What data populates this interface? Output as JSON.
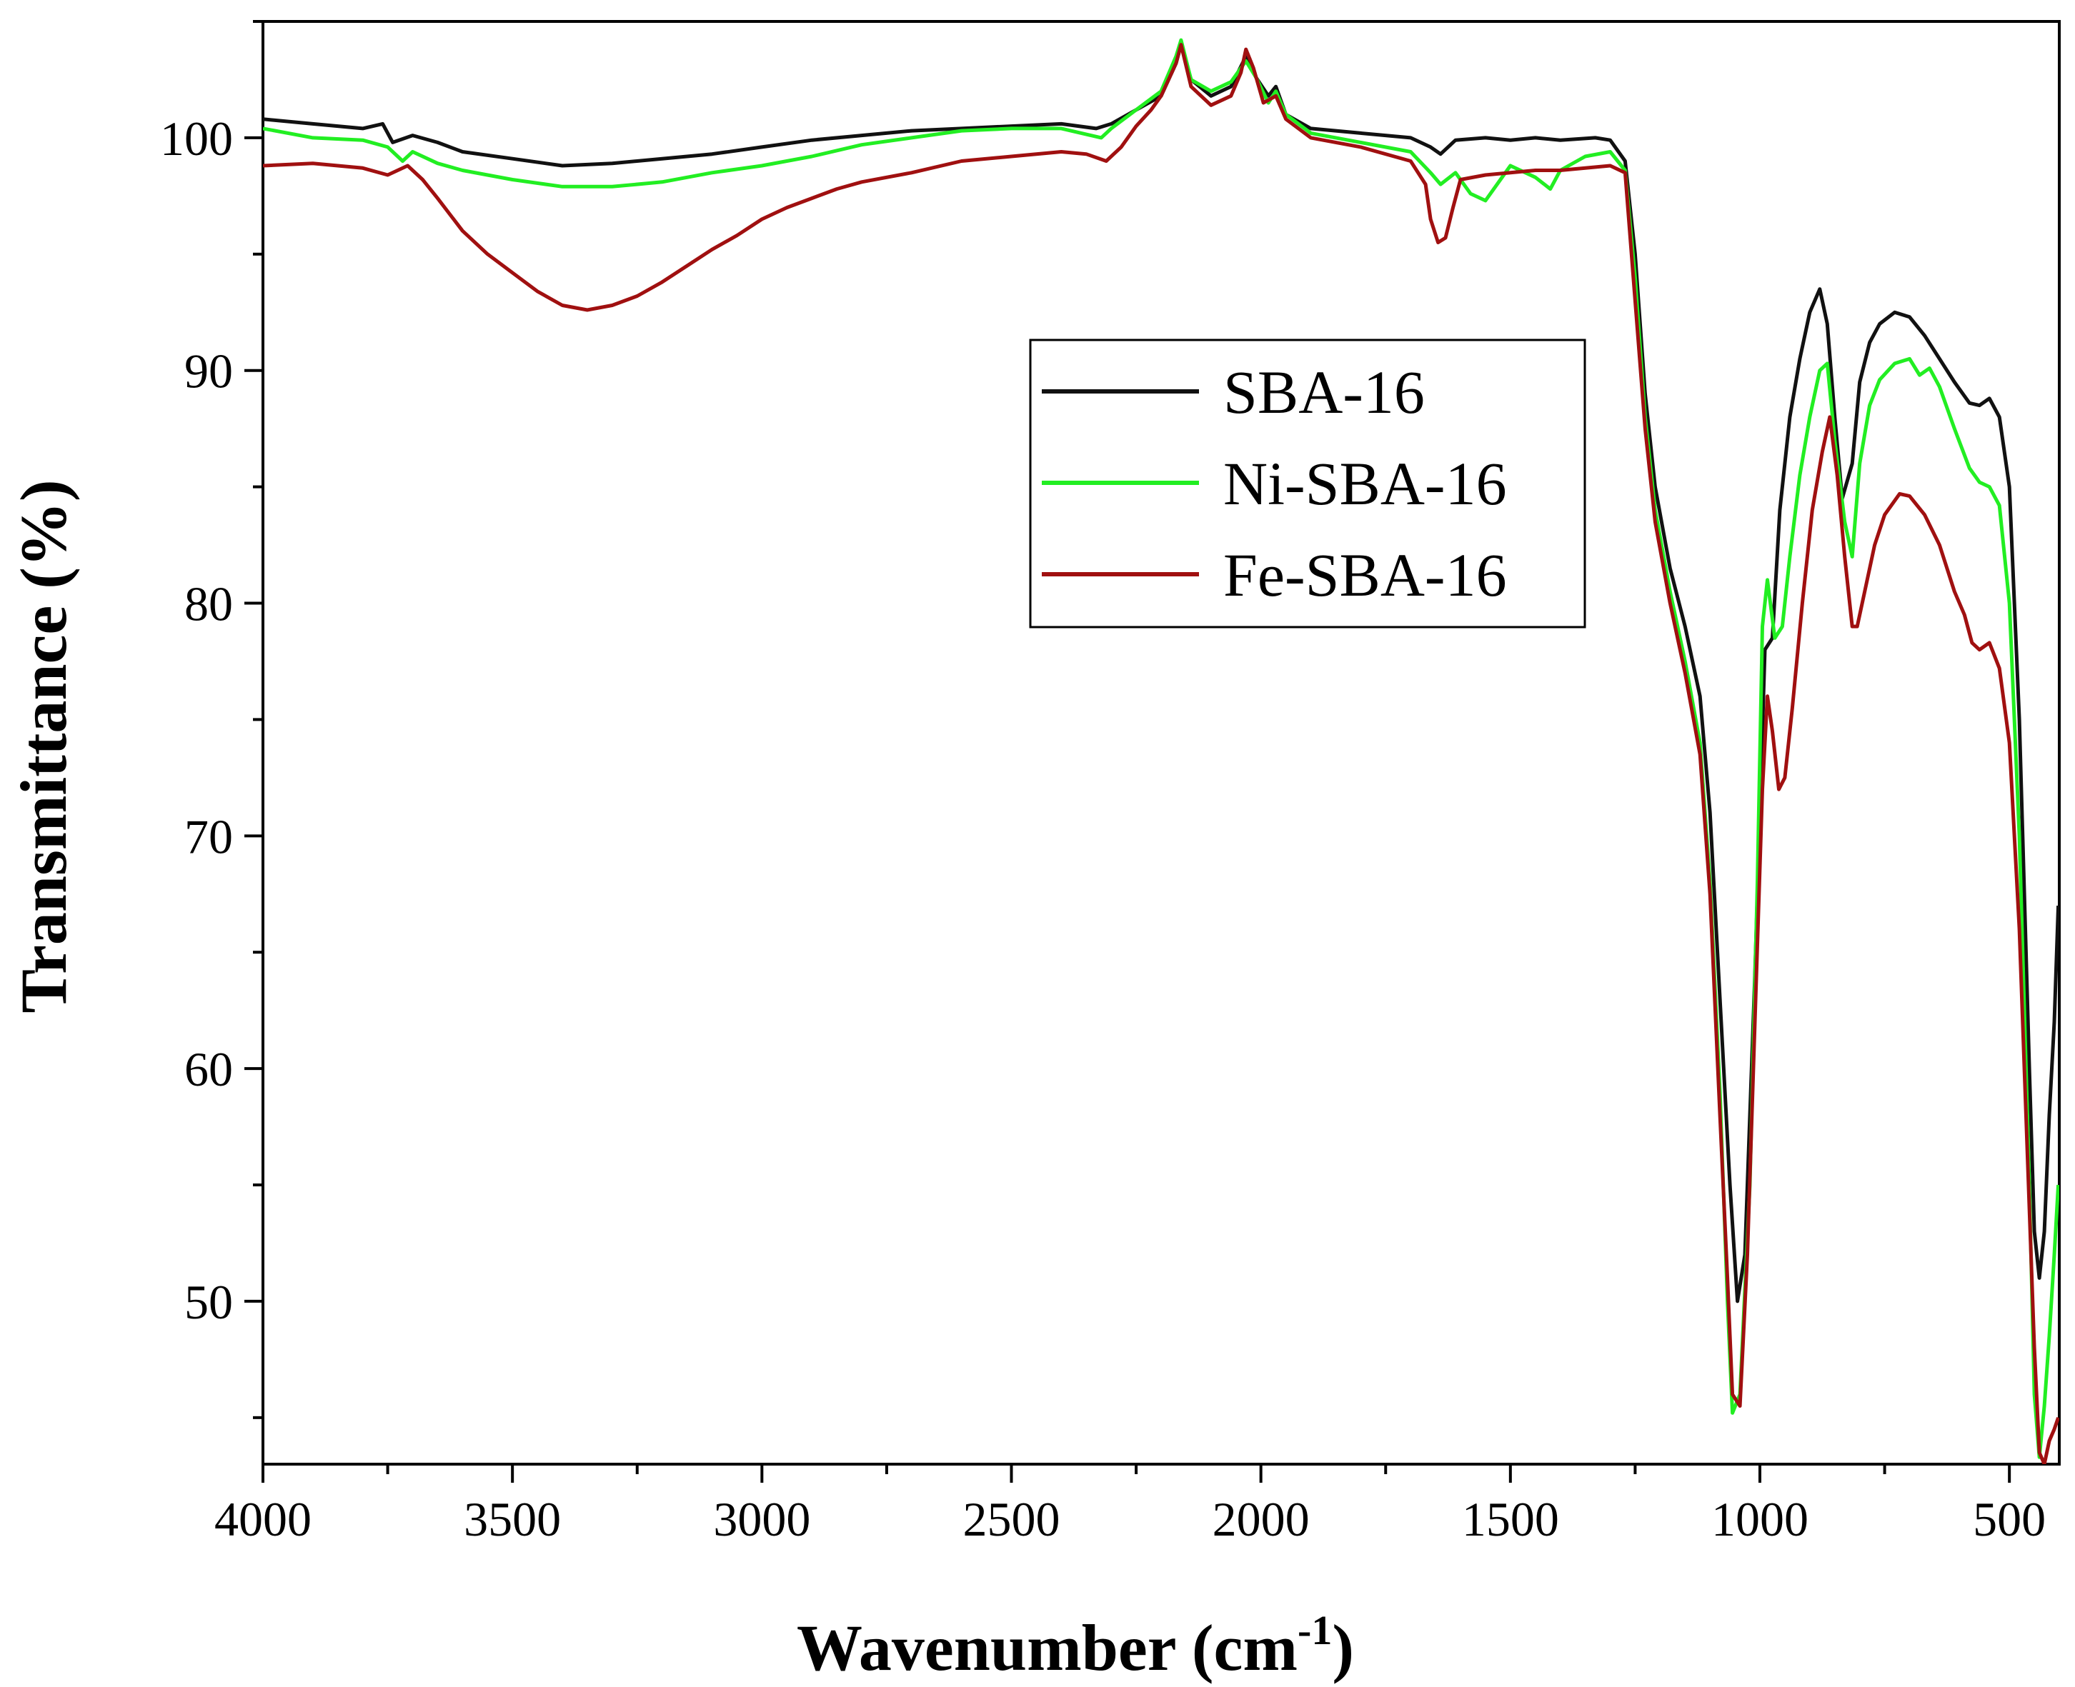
{
  "chart_data": {
    "type": "line",
    "title": "",
    "xlabel": "Wavenumber (cm",
    "xlabel_superscript": "-1",
    "xlabel_suffix": ")",
    "ylabel": "Transmittance (%)",
    "xlim": [
      4000,
      400
    ],
    "ylim": [
      43,
      105
    ],
    "x_reversed": true,
    "grid": false,
    "legend_position": "upper-right-center",
    "x_ticks": [
      4000,
      3500,
      3000,
      2500,
      2000,
      1500,
      1000,
      500
    ],
    "x_tick_labels": [
      "4000",
      "3500",
      "3000",
      "2500",
      "2000",
      "1500",
      "1000",
      "500"
    ],
    "y_ticks": [
      50,
      60,
      70,
      80,
      90,
      100
    ],
    "y_tick_labels": [
      "50",
      "60",
      "70",
      "80",
      "90",
      "100"
    ],
    "series": [
      {
        "name": "SBA-16",
        "color": "#111111",
        "points": [
          [
            4000,
            100.8
          ],
          [
            3900,
            100.6
          ],
          [
            3800,
            100.4
          ],
          [
            3760,
            100.6
          ],
          [
            3740,
            99.8
          ],
          [
            3700,
            100.1
          ],
          [
            3650,
            99.8
          ],
          [
            3600,
            99.4
          ],
          [
            3500,
            99.1
          ],
          [
            3400,
            98.8
          ],
          [
            3300,
            98.9
          ],
          [
            3200,
            99.1
          ],
          [
            3100,
            99.3
          ],
          [
            3000,
            99.6
          ],
          [
            2900,
            99.9
          ],
          [
            2800,
            100.1
          ],
          [
            2700,
            100.3
          ],
          [
            2600,
            100.4
          ],
          [
            2500,
            100.5
          ],
          [
            2400,
            100.6
          ],
          [
            2330,
            100.4
          ],
          [
            2300,
            100.6
          ],
          [
            2250,
            101.2
          ],
          [
            2200,
            101.8
          ],
          [
            2170,
            103.2
          ],
          [
            2160,
            104.0
          ],
          [
            2140,
            102.5
          ],
          [
            2100,
            101.8
          ],
          [
            2060,
            102.2
          ],
          [
            2030,
            103.5
          ],
          [
            2010,
            102.6
          ],
          [
            1985,
            101.8
          ],
          [
            1970,
            102.2
          ],
          [
            1950,
            101.0
          ],
          [
            1900,
            100.4
          ],
          [
            1800,
            100.2
          ],
          [
            1700,
            100.0
          ],
          [
            1660,
            99.6
          ],
          [
            1640,
            99.3
          ],
          [
            1610,
            99.9
          ],
          [
            1550,
            100.0
          ],
          [
            1500,
            99.9
          ],
          [
            1450,
            100.0
          ],
          [
            1400,
            99.9
          ],
          [
            1330,
            100.0
          ],
          [
            1300,
            99.9
          ],
          [
            1270,
            99.0
          ],
          [
            1250,
            95.0
          ],
          [
            1230,
            89.0
          ],
          [
            1210,
            85.0
          ],
          [
            1180,
            81.5
          ],
          [
            1150,
            79.0
          ],
          [
            1120,
            76.0
          ],
          [
            1100,
            71.0
          ],
          [
            1080,
            63.0
          ],
          [
            1060,
            55.0
          ],
          [
            1045,
            50.0
          ],
          [
            1030,
            52.0
          ],
          [
            1010,
            64.0
          ],
          [
            990,
            78.0
          ],
          [
            975,
            78.5
          ],
          [
            960,
            84.0
          ],
          [
            940,
            88.0
          ],
          [
            920,
            90.5
          ],
          [
            900,
            92.5
          ],
          [
            880,
            93.5
          ],
          [
            865,
            92.0
          ],
          [
            850,
            88.0
          ],
          [
            835,
            84.5
          ],
          [
            815,
            86.0
          ],
          [
            800,
            89.5
          ],
          [
            780,
            91.2
          ],
          [
            760,
            92.0
          ],
          [
            730,
            92.5
          ],
          [
            700,
            92.3
          ],
          [
            670,
            91.5
          ],
          [
            640,
            90.5
          ],
          [
            610,
            89.5
          ],
          [
            580,
            88.6
          ],
          [
            560,
            88.5
          ],
          [
            540,
            88.8
          ],
          [
            520,
            88.0
          ],
          [
            500,
            85.0
          ],
          [
            480,
            75.0
          ],
          [
            460,
            60.0
          ],
          [
            450,
            53.0
          ],
          [
            440,
            51.0
          ],
          [
            430,
            53.0
          ],
          [
            420,
            58.0
          ],
          [
            410,
            62.0
          ],
          [
            402,
            67.0
          ]
        ]
      },
      {
        "name": "Ni-SBA-16",
        "color": "#22ee22",
        "points": [
          [
            4000,
            100.4
          ],
          [
            3900,
            100.0
          ],
          [
            3800,
            99.9
          ],
          [
            3750,
            99.6
          ],
          [
            3720,
            99.0
          ],
          [
            3700,
            99.4
          ],
          [
            3650,
            98.9
          ],
          [
            3600,
            98.6
          ],
          [
            3500,
            98.2
          ],
          [
            3400,
            97.9
          ],
          [
            3300,
            97.9
          ],
          [
            3200,
            98.1
          ],
          [
            3100,
            98.5
          ],
          [
            3000,
            98.8
          ],
          [
            2900,
            99.2
          ],
          [
            2800,
            99.7
          ],
          [
            2700,
            100.0
          ],
          [
            2600,
            100.3
          ],
          [
            2500,
            100.4
          ],
          [
            2400,
            100.4
          ],
          [
            2320,
            100.0
          ],
          [
            2300,
            100.4
          ],
          [
            2250,
            101.2
          ],
          [
            2200,
            102.0
          ],
          [
            2170,
            103.5
          ],
          [
            2160,
            104.2
          ],
          [
            2140,
            102.5
          ],
          [
            2100,
            102.0
          ],
          [
            2060,
            102.4
          ],
          [
            2030,
            103.3
          ],
          [
            2010,
            102.6
          ],
          [
            1985,
            101.5
          ],
          [
            1970,
            102.0
          ],
          [
            1950,
            101.0
          ],
          [
            1900,
            100.2
          ],
          [
            1800,
            99.8
          ],
          [
            1700,
            99.4
          ],
          [
            1660,
            98.5
          ],
          [
            1640,
            98.0
          ],
          [
            1610,
            98.5
          ],
          [
            1580,
            97.6
          ],
          [
            1550,
            97.3
          ],
          [
            1520,
            98.2
          ],
          [
            1500,
            98.8
          ],
          [
            1450,
            98.3
          ],
          [
            1420,
            97.8
          ],
          [
            1400,
            98.6
          ],
          [
            1350,
            99.2
          ],
          [
            1300,
            99.4
          ],
          [
            1270,
            98.6
          ],
          [
            1250,
            94.0
          ],
          [
            1230,
            88.0
          ],
          [
            1210,
            84.0
          ],
          [
            1180,
            80.5
          ],
          [
            1150,
            77.5
          ],
          [
            1120,
            74.0
          ],
          [
            1100,
            68.0
          ],
          [
            1080,
            59.0
          ],
          [
            1065,
            50.0
          ],
          [
            1055,
            45.2
          ],
          [
            1040,
            46.0
          ],
          [
            1020,
            55.0
          ],
          [
            1005,
            68.0
          ],
          [
            995,
            79.0
          ],
          [
            985,
            81.0
          ],
          [
            970,
            78.5
          ],
          [
            955,
            79.0
          ],
          [
            940,
            82.0
          ],
          [
            920,
            85.5
          ],
          [
            900,
            88.0
          ],
          [
            880,
            90.0
          ],
          [
            865,
            90.3
          ],
          [
            850,
            87.0
          ],
          [
            830,
            83.5
          ],
          [
            815,
            82.0
          ],
          [
            800,
            86.0
          ],
          [
            780,
            88.5
          ],
          [
            760,
            89.6
          ],
          [
            730,
            90.3
          ],
          [
            700,
            90.5
          ],
          [
            680,
            89.8
          ],
          [
            660,
            90.1
          ],
          [
            640,
            89.3
          ],
          [
            610,
            87.5
          ],
          [
            580,
            85.8
          ],
          [
            560,
            85.2
          ],
          [
            540,
            85.0
          ],
          [
            520,
            84.2
          ],
          [
            500,
            80.0
          ],
          [
            480,
            70.0
          ],
          [
            460,
            55.0
          ],
          [
            450,
            46.0
          ],
          [
            440,
            43.3
          ],
          [
            430,
            45.5
          ],
          [
            420,
            48.5
          ],
          [
            410,
            52.0
          ],
          [
            402,
            55.0
          ]
        ]
      },
      {
        "name": "Fe-SBA-16",
        "color": "#a01010",
        "points": [
          [
            4000,
            98.8
          ],
          [
            3900,
            98.9
          ],
          [
            3800,
            98.7
          ],
          [
            3750,
            98.4
          ],
          [
            3710,
            98.8
          ],
          [
            3680,
            98.2
          ],
          [
            3650,
            97.4
          ],
          [
            3600,
            96.0
          ],
          [
            3550,
            95.0
          ],
          [
            3500,
            94.2
          ],
          [
            3450,
            93.4
          ],
          [
            3400,
            92.8
          ],
          [
            3350,
            92.6
          ],
          [
            3300,
            92.8
          ],
          [
            3250,
            93.2
          ],
          [
            3200,
            93.8
          ],
          [
            3150,
            94.5
          ],
          [
            3100,
            95.2
          ],
          [
            3050,
            95.8
          ],
          [
            3000,
            96.5
          ],
          [
            2950,
            97.0
          ],
          [
            2900,
            97.4
          ],
          [
            2850,
            97.8
          ],
          [
            2800,
            98.1
          ],
          [
            2700,
            98.5
          ],
          [
            2600,
            99.0
          ],
          [
            2500,
            99.2
          ],
          [
            2400,
            99.4
          ],
          [
            2350,
            99.3
          ],
          [
            2310,
            99.0
          ],
          [
            2280,
            99.6
          ],
          [
            2250,
            100.5
          ],
          [
            2220,
            101.2
          ],
          [
            2200,
            101.8
          ],
          [
            2170,
            103.2
          ],
          [
            2160,
            104.0
          ],
          [
            2140,
            102.2
          ],
          [
            2100,
            101.4
          ],
          [
            2060,
            101.8
          ],
          [
            2040,
            102.8
          ],
          [
            2030,
            103.8
          ],
          [
            2015,
            103.0
          ],
          [
            1995,
            101.5
          ],
          [
            1970,
            101.8
          ],
          [
            1950,
            100.8
          ],
          [
            1900,
            100.0
          ],
          [
            1800,
            99.6
          ],
          [
            1700,
            99.0
          ],
          [
            1670,
            98.0
          ],
          [
            1660,
            96.5
          ],
          [
            1645,
            95.5
          ],
          [
            1630,
            95.7
          ],
          [
            1615,
            97.0
          ],
          [
            1600,
            98.2
          ],
          [
            1550,
            98.4
          ],
          [
            1500,
            98.5
          ],
          [
            1450,
            98.6
          ],
          [
            1400,
            98.6
          ],
          [
            1350,
            98.7
          ],
          [
            1300,
            98.8
          ],
          [
            1270,
            98.5
          ],
          [
            1250,
            93.0
          ],
          [
            1230,
            87.5
          ],
          [
            1210,
            83.5
          ],
          [
            1180,
            80.0
          ],
          [
            1150,
            77.0
          ],
          [
            1120,
            73.5
          ],
          [
            1100,
            67.5
          ],
          [
            1080,
            58.0
          ],
          [
            1065,
            51.0
          ],
          [
            1055,
            46.0
          ],
          [
            1040,
            45.5
          ],
          [
            1025,
            52.0
          ],
          [
            1010,
            62.0
          ],
          [
            995,
            72.0
          ],
          [
            985,
            76.0
          ],
          [
            975,
            74.5
          ],
          [
            962,
            72.0
          ],
          [
            950,
            72.5
          ],
          [
            935,
            75.5
          ],
          [
            915,
            80.0
          ],
          [
            895,
            84.0
          ],
          [
            875,
            86.5
          ],
          [
            860,
            88.0
          ],
          [
            845,
            85.5
          ],
          [
            830,
            82.0
          ],
          [
            815,
            79.0
          ],
          [
            805,
            79.0
          ],
          [
            790,
            80.5
          ],
          [
            770,
            82.5
          ],
          [
            750,
            83.8
          ],
          [
            720,
            84.7
          ],
          [
            700,
            84.6
          ],
          [
            670,
            83.8
          ],
          [
            640,
            82.5
          ],
          [
            610,
            80.5
          ],
          [
            590,
            79.5
          ],
          [
            575,
            78.3
          ],
          [
            560,
            78.0
          ],
          [
            540,
            78.3
          ],
          [
            520,
            77.2
          ],
          [
            500,
            74.0
          ],
          [
            480,
            66.0
          ],
          [
            460,
            54.0
          ],
          [
            450,
            48.0
          ],
          [
            440,
            43.5
          ],
          [
            430,
            43.0
          ],
          [
            420,
            44.0
          ],
          [
            410,
            44.5
          ],
          [
            402,
            45.0
          ]
        ]
      }
    ]
  }
}
